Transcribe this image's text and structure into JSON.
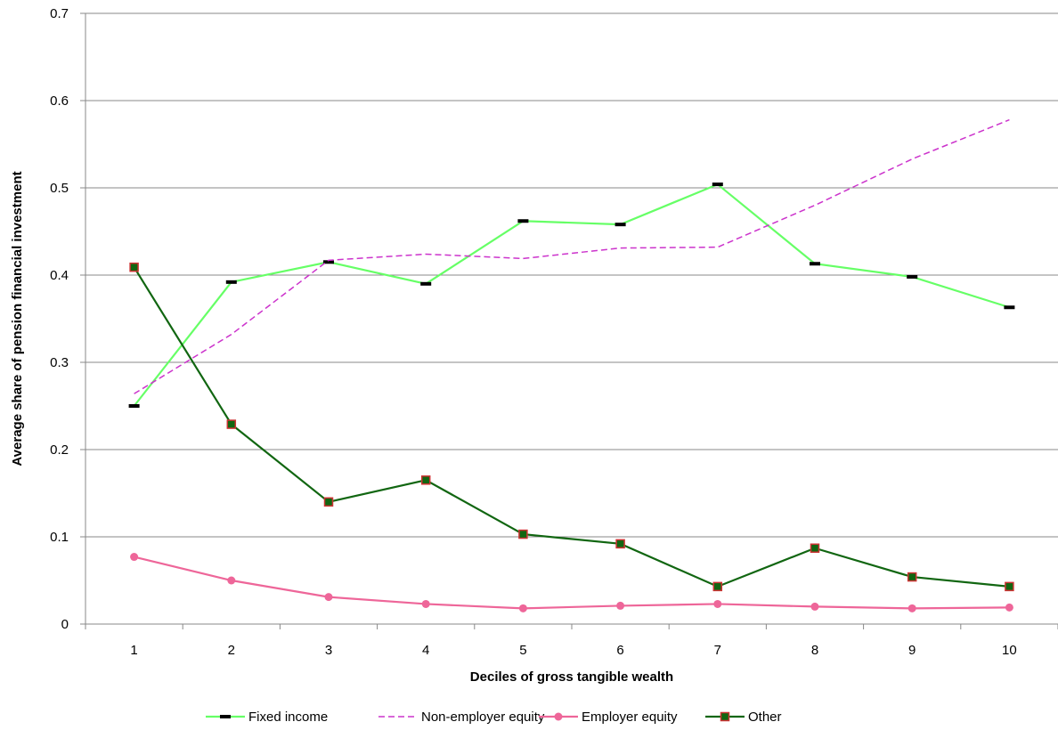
{
  "chart_data": {
    "type": "line",
    "title": "",
    "xlabel": "Deciles of gross tangible wealth",
    "ylabel": "Average share of pension financial investment",
    "categories": [
      "1",
      "2",
      "3",
      "4",
      "5",
      "6",
      "7",
      "8",
      "9",
      "10"
    ],
    "ylim": [
      0,
      0.7
    ],
    "yticks": [
      "0",
      "0.1",
      "0.2",
      "0.3",
      "0.4",
      "0.5",
      "0.6",
      "0.7"
    ],
    "grid": true,
    "legend_position": "bottom",
    "series": [
      {
        "name": "Fixed income",
        "color": "#66ff66",
        "marker": "dash",
        "values": [
          0.25,
          0.392,
          0.415,
          0.39,
          0.462,
          0.458,
          0.504,
          0.413,
          0.398,
          0.363
        ]
      },
      {
        "name": "Non-employer equity",
        "color": "#cc33cc",
        "marker": "none",
        "dashed": true,
        "values": [
          0.264,
          0.332,
          0.417,
          0.424,
          0.419,
          0.431,
          0.432,
          0.48,
          0.533,
          0.578
        ]
      },
      {
        "name": "Employer equity",
        "color": "#ee6699",
        "marker": "circle",
        "values": [
          0.077,
          0.05,
          0.031,
          0.023,
          0.018,
          0.021,
          0.023,
          0.02,
          0.018,
          0.019
        ]
      },
      {
        "name": "Other",
        "color": "#116611",
        "marker": "square",
        "values": [
          0.409,
          0.229,
          0.14,
          0.165,
          0.103,
          0.092,
          0.043,
          0.087,
          0.054,
          0.043
        ]
      }
    ]
  }
}
